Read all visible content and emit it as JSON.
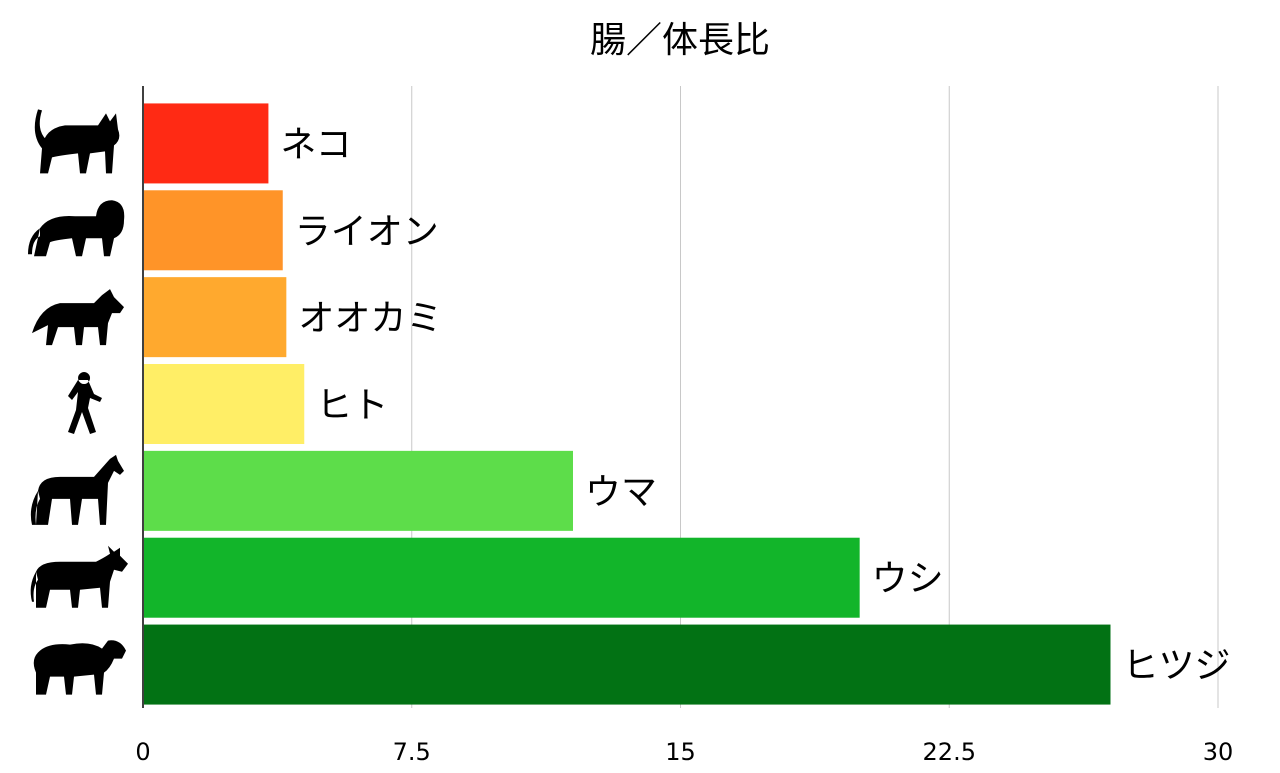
{
  "chart_data": {
    "type": "bar",
    "orientation": "horizontal",
    "title": "腸／体長比",
    "categories": [
      "ネコ",
      "ライオン",
      "オオカミ",
      "ヒト",
      "ウマ",
      "ウシ",
      "ヒツジ"
    ],
    "values": [
      3.5,
      3.9,
      4.0,
      4.5,
      12.0,
      20.0,
      27.0
    ],
    "colors": [
      "#ff2a14",
      "#ff9428",
      "#ffa92e",
      "#ffee66",
      "#5ddd4a",
      "#12b52a",
      "#027214"
    ],
    "icons": [
      "cat-icon",
      "lion-icon",
      "wolf-icon",
      "walking-person-icon",
      "horse-icon",
      "cow-icon",
      "sheep-icon"
    ],
    "xlim": [
      0,
      30
    ],
    "xticks": [
      "0",
      "7.5",
      "15",
      "22.5",
      "30"
    ],
    "xtick_values": [
      0,
      7.5,
      15,
      22.5,
      30
    ],
    "grid": "vertical",
    "xlabel": "",
    "ylabel": ""
  }
}
